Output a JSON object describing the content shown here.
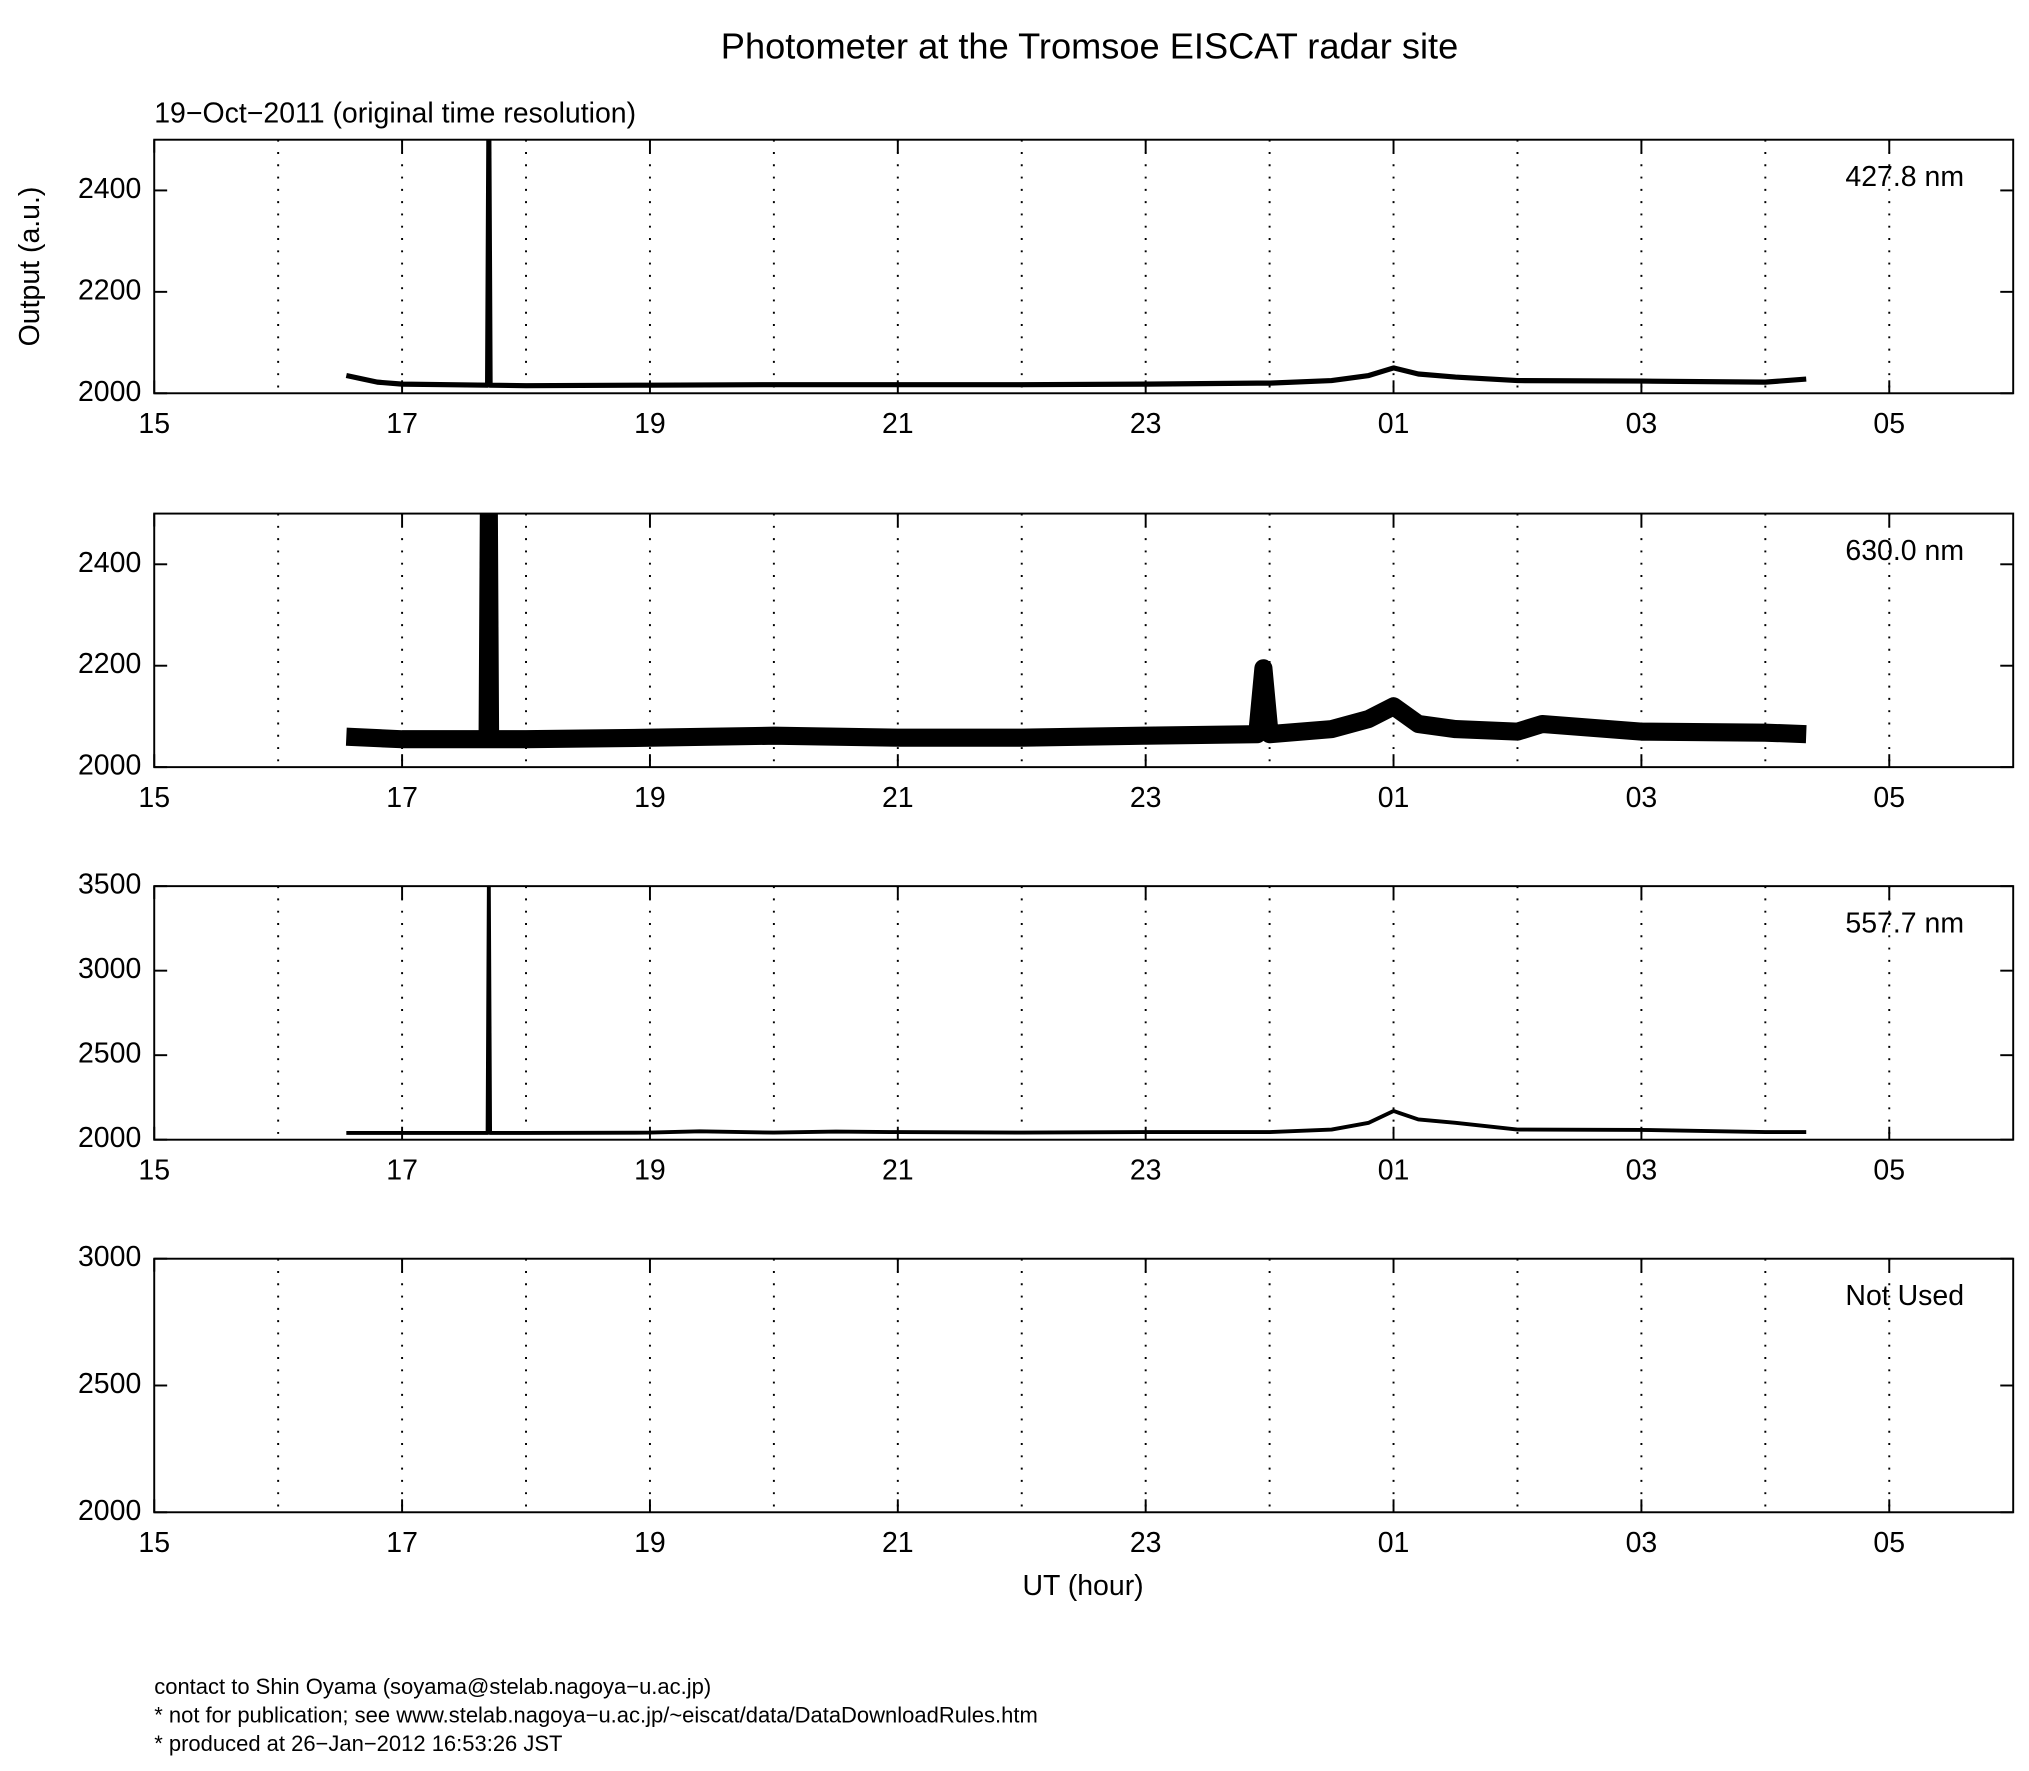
{
  "title": "Photometer at the Tromsoe EISCAT radar site",
  "subtitle": "19−Oct−2011 (original time resolution)",
  "footer": [
    "contact to Shin Oyama (soyama@stelab.nagoya−u.ac.jp)",
    "* not for publication; see www.stelab.nagoya−u.ac.jp/~eiscat/data/DataDownloadRules.htm",
    "* produced at 26−Jan−2012 16:53:26 JST"
  ],
  "chart_data": [
    {
      "type": "line",
      "annotation": "427.8 nm",
      "ylabel": "Output (a.u.)",
      "color": "#000000",
      "grid": true,
      "xlim": [
        15,
        30
      ],
      "xticks": [
        15,
        17,
        19,
        21,
        23,
        {
          "value": 25,
          "label": "01"
        },
        {
          "value": 27,
          "label": "03"
        },
        {
          "value": 29,
          "label": "05"
        }
      ],
      "minor_xticks": [
        16,
        18,
        20,
        22,
        24,
        26,
        28
      ],
      "ylim": [
        2000,
        2500
      ],
      "yticks": [
        2000,
        2200,
        2400
      ],
      "x": [
        16.55,
        16.8,
        17.0,
        17.69,
        17.7,
        17.71,
        18,
        19,
        20,
        21,
        22,
        23,
        23.9,
        24,
        24.5,
        24.8,
        25.0,
        25.2,
        25.5,
        26,
        27,
        28,
        28.33
      ],
      "values": [
        2035,
        2022,
        2018,
        2016,
        2500,
        2016,
        2015,
        2016,
        2017,
        2017,
        2017,
        2018,
        2020,
        2020,
        2025,
        2035,
        2050,
        2038,
        2032,
        2025,
        2024,
        2022,
        2028
      ]
    },
    {
      "type": "line",
      "annotation": "630.0 nm",
      "color": "#000000",
      "grid": true,
      "xlim": [
        15,
        30
      ],
      "xticks": [
        15,
        17,
        19,
        21,
        23,
        {
          "value": 25,
          "label": "01"
        },
        {
          "value": 27,
          "label": "03"
        },
        {
          "value": 29,
          "label": "05"
        }
      ],
      "minor_xticks": [
        16,
        18,
        20,
        22,
        24,
        26,
        28
      ],
      "ylim": [
        2000,
        2500
      ],
      "yticks": [
        2000,
        2200,
        2400
      ],
      "x": [
        16.55,
        17.0,
        17.69,
        17.7,
        17.71,
        18,
        19,
        20,
        21,
        22,
        23,
        23.9,
        23.95,
        24,
        24.5,
        24.8,
        25.0,
        25.2,
        25.5,
        26,
        26.2,
        27,
        28,
        28.33
      ],
      "values": [
        2060,
        2055,
        2055,
        2500,
        2055,
        2055,
        2058,
        2062,
        2058,
        2058,
        2062,
        2065,
        2195,
        2065,
        2075,
        2095,
        2120,
        2085,
        2075,
        2070,
        2085,
        2070,
        2068,
        2065
      ]
    },
    {
      "type": "line",
      "annotation": "557.7 nm",
      "color": "#000000",
      "grid": true,
      "xlim": [
        15,
        30
      ],
      "xticks": [
        15,
        17,
        19,
        21,
        23,
        {
          "value": 25,
          "label": "01"
        },
        {
          "value": 27,
          "label": "03"
        },
        {
          "value": 29,
          "label": "05"
        }
      ],
      "minor_xticks": [
        16,
        18,
        20,
        22,
        24,
        26,
        28
      ],
      "ylim": [
        2000,
        3500
      ],
      "yticks": [
        2000,
        2500,
        3000,
        3500
      ],
      "x": [
        16.55,
        17.0,
        17.69,
        17.7,
        17.71,
        18,
        19,
        19.4,
        20,
        20.5,
        21,
        22,
        23,
        24,
        24.5,
        24.8,
        25.0,
        25.2,
        25.5,
        26,
        27,
        28,
        28.33
      ],
      "values": [
        2040,
        2040,
        2040,
        3500,
        2040,
        2040,
        2042,
        2050,
        2042,
        2048,
        2045,
        2042,
        2045,
        2045,
        2060,
        2100,
        2170,
        2120,
        2100,
        2060,
        2058,
        2045,
        2045
      ]
    },
    {
      "type": "line",
      "annotation": "Not Used",
      "xlabel": "UT (hour)",
      "color": "#000000",
      "grid": true,
      "xlim": [
        15,
        30
      ],
      "xticks": [
        15,
        17,
        19,
        21,
        23,
        {
          "value": 25,
          "label": "01"
        },
        {
          "value": 27,
          "label": "03"
        },
        {
          "value": 29,
          "label": "05"
        }
      ],
      "minor_xticks": [
        16,
        18,
        20,
        22,
        24,
        26,
        28
      ],
      "ylim": [
        2000,
        3000
      ],
      "yticks": [
        2000,
        2500,
        3000
      ],
      "x": [],
      "values": []
    }
  ]
}
